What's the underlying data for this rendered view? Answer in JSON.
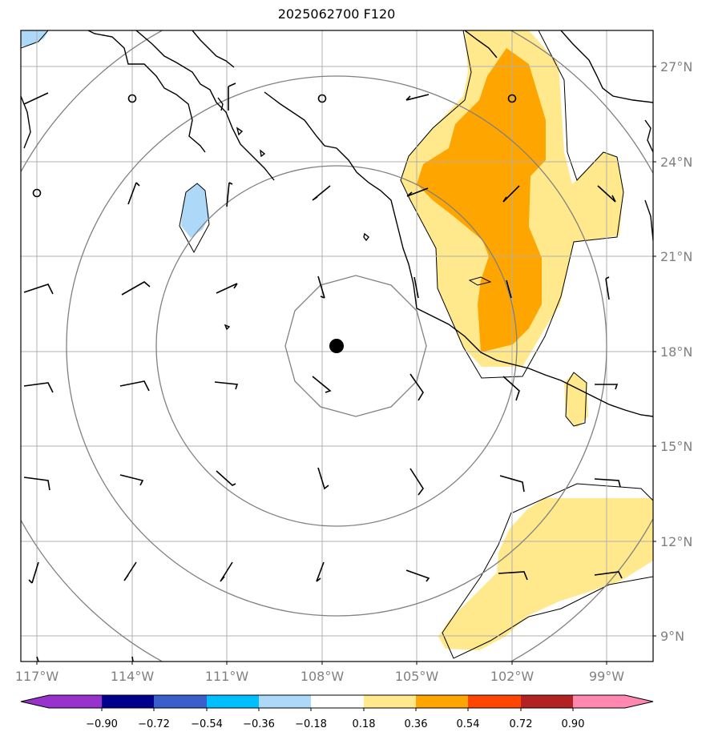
{
  "title": "2025062700 F120",
  "map": {
    "lat_range": [
      8.2,
      28.2
    ],
    "lon_range": [
      -117.5,
      -97.5
    ],
    "lat_ticks": [
      {
        "value": 9,
        "label": "9°N"
      },
      {
        "value": 12,
        "label": "12°N"
      },
      {
        "value": 15,
        "label": "15°N"
      },
      {
        "value": 18,
        "label": "18°N"
      },
      {
        "value": 21,
        "label": "21°N"
      },
      {
        "value": 24,
        "label": "24°N"
      },
      {
        "value": 27,
        "label": "27°N"
      }
    ],
    "lon_ticks": [
      {
        "value": -117,
        "label": "117°W"
      },
      {
        "value": -114,
        "label": "114°W"
      },
      {
        "value": -111,
        "label": "111°W"
      },
      {
        "value": -108,
        "label": "108°W"
      },
      {
        "value": -105,
        "label": "105°W"
      },
      {
        "value": -102,
        "label": "102°W"
      },
      {
        "value": -99,
        "label": "99°W"
      }
    ],
    "storm_center": {
      "lon": -107.6,
      "lat": 18.2
    },
    "colors": {
      "frame": "#000000",
      "grid": "#b0b0b0",
      "ring": "#808080",
      "coast": "#000000",
      "light_blue": "#add8f7",
      "yellow": "#ffe98c",
      "orange": "#ffa500"
    }
  },
  "colorbar": {
    "labels": [
      "−0.90",
      "−0.72",
      "−0.54",
      "−0.36",
      "−0.18",
      "0.18",
      "0.36",
      "0.54",
      "0.72",
      "0.90"
    ],
    "colors": [
      "#9932cc",
      "#00008b",
      "#3a5fcd",
      "#00bfff",
      "#add8f7",
      "#ffffff",
      "#ffe98c",
      "#ffa500",
      "#ff4500",
      "#b22222",
      "#ff88b0",
      "#ff88b0"
    ]
  }
}
